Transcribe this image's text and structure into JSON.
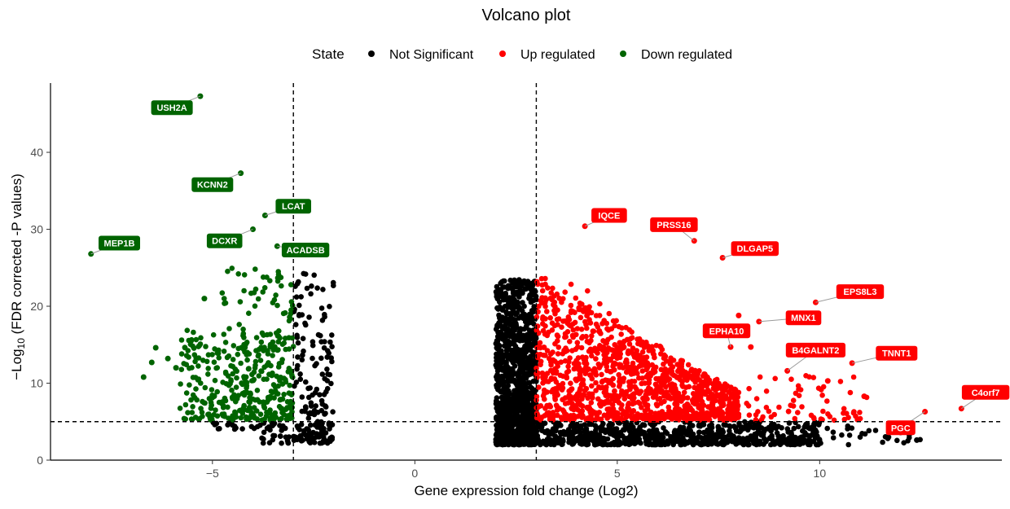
{
  "chart_data": {
    "type": "scatter",
    "title": "Volcano plot",
    "xlabel": "Gene expression fold change (Log2)",
    "ylabel_parts": [
      "−Log",
      "10",
      " (FDR corrected -P values)"
    ],
    "xlim": [
      -9,
      14.5
    ],
    "ylim": [
      0,
      49
    ],
    "x_ticks": [
      -5,
      0,
      5,
      10
    ],
    "y_ticks": [
      0,
      10,
      20,
      30,
      40
    ],
    "thresholds": {
      "fold_change_low": -3,
      "fold_change_high": 3,
      "neg_log10_p": 5
    },
    "legend": {
      "title": "State",
      "position": "top",
      "entries": [
        {
          "label": "Not Significant",
          "color": "#000000"
        },
        {
          "label": "Up regulated",
          "color": "#ff0000"
        },
        {
          "label": "Down regulated",
          "color": "#006400"
        }
      ]
    },
    "series": [
      {
        "name": "Not Significant",
        "color": "#000000",
        "clusters": [
          {
            "x": [
              2.0,
              3.0
            ],
            "y": [
              2.0,
              23.5
            ],
            "n": 1100,
            "taper": false
          },
          {
            "x": [
              3.0,
              10.0
            ],
            "y": [
              2.0,
              5.0
            ],
            "n": 700,
            "taper": false
          },
          {
            "x": [
              10.0,
              12.5
            ],
            "y": [
              2.0,
              4.8
            ],
            "n": 25,
            "taper": false
          },
          {
            "x": [
              -3.8,
              -2.0
            ],
            "y": [
              2.2,
              5.0
            ],
            "n": 70,
            "taper": false
          },
          {
            "x": [
              -3.0,
              -2.0
            ],
            "y": [
              2.5,
              24.5
            ],
            "n": 140,
            "taper": false
          },
          {
            "x": [
              -5.0,
              -3.8
            ],
            "y": [
              4.0,
              5.0
            ],
            "n": 20,
            "taper": false
          }
        ],
        "points": [
          {
            "x": 12.4,
            "y": 2.6
          },
          {
            "x": 11.7,
            "y": 3.0
          },
          {
            "x": 12.0,
            "y": 3.6
          }
        ]
      },
      {
        "name": "Up regulated",
        "color": "#ff0000",
        "clusters": [
          {
            "x": [
              3.0,
              8.0
            ],
            "y": [
              5.2,
              24.0
            ],
            "n": 1100,
            "taper": true
          },
          {
            "x": [
              3.0,
              6.5
            ],
            "y": [
              8.0,
              28.0
            ],
            "n": 120,
            "taper": true
          },
          {
            "x": [
              7.5,
              11.2
            ],
            "y": [
              5.2,
              11.0
            ],
            "n": 70,
            "taper": false
          }
        ],
        "points": [
          {
            "x": 4.2,
            "y": 30.4
          },
          {
            "x": 6.9,
            "y": 28.5
          },
          {
            "x": 7.6,
            "y": 26.3
          },
          {
            "x": 9.9,
            "y": 20.5
          },
          {
            "x": 8.0,
            "y": 18.8
          },
          {
            "x": 8.5,
            "y": 18.0
          },
          {
            "x": 7.8,
            "y": 14.7
          },
          {
            "x": 9.2,
            "y": 11.6
          },
          {
            "x": 10.8,
            "y": 12.6
          },
          {
            "x": 13.5,
            "y": 6.7
          },
          {
            "x": 12.6,
            "y": 6.3
          },
          {
            "x": 8.3,
            "y": 14.7
          },
          {
            "x": 10.2,
            "y": 10.3
          },
          {
            "x": 11.1,
            "y": 8.3
          }
        ]
      },
      {
        "name": "Down regulated",
        "color": "#006400",
        "clusters": [
          {
            "x": [
              -5.8,
              -3.0
            ],
            "y": [
              5.2,
              17.0
            ],
            "n": 330,
            "taper": false
          },
          {
            "x": [
              -4.8,
              -3.0
            ],
            "y": [
              10.0,
              25.0
            ],
            "n": 70,
            "taper": false
          },
          {
            "x": [
              -3.6,
              -3.0
            ],
            "y": [
              18.0,
              26.0
            ],
            "n": 12,
            "taper": false
          }
        ],
        "points": [
          {
            "x": -5.3,
            "y": 47.3
          },
          {
            "x": -4.3,
            "y": 37.3
          },
          {
            "x": -3.7,
            "y": 31.8
          },
          {
            "x": -8.0,
            "y": 26.8
          },
          {
            "x": -4.0,
            "y": 30.0
          },
          {
            "x": -3.4,
            "y": 27.8
          },
          {
            "x": -6.7,
            "y": 10.8
          },
          {
            "x": -6.4,
            "y": 14.6
          },
          {
            "x": -6.5,
            "y": 12.7
          },
          {
            "x": -6.1,
            "y": 13.2
          },
          {
            "x": -5.2,
            "y": 21.0
          },
          {
            "x": -5.9,
            "y": 12.0
          }
        ]
      }
    ],
    "annotations": [
      {
        "label": "USH2A",
        "x": -6.0,
        "y": 45.8,
        "point": [
          -5.3,
          47.3
        ],
        "type": "Down regulated",
        "color": "#006400"
      },
      {
        "label": "KCNN2",
        "x": -5.0,
        "y": 35.8,
        "point": [
          -4.3,
          37.3
        ],
        "type": "Down regulated",
        "color": "#006400"
      },
      {
        "label": "LCAT",
        "x": -3.0,
        "y": 33.0,
        "point": [
          -3.7,
          31.8
        ],
        "type": "Down regulated",
        "color": "#006400"
      },
      {
        "label": "MEP1B",
        "x": -7.3,
        "y": 28.2,
        "point": [
          -8.0,
          26.8
        ],
        "type": "Down regulated",
        "color": "#006400"
      },
      {
        "label": "DCXR",
        "x": -4.7,
        "y": 28.5,
        "point": [
          -4.0,
          30.0
        ],
        "type": "Down regulated",
        "color": "#006400"
      },
      {
        "label": "ACADSB",
        "x": -2.7,
        "y": 27.3,
        "point": [
          -3.4,
          27.8
        ],
        "type": "Down regulated",
        "color": "#006400"
      },
      {
        "label": "IQCE",
        "x": 4.8,
        "y": 31.8,
        "point": [
          4.2,
          30.4
        ],
        "type": "Up regulated",
        "color": "#ff0000"
      },
      {
        "label": "PRSS16",
        "x": 6.4,
        "y": 30.6,
        "point": [
          6.9,
          28.5
        ],
        "type": "Up regulated",
        "color": "#ff0000"
      },
      {
        "label": "DLGAP5",
        "x": 8.4,
        "y": 27.5,
        "point": [
          7.6,
          26.3
        ],
        "type": "Up regulated",
        "color": "#ff0000"
      },
      {
        "label": "EPS8L3",
        "x": 11.0,
        "y": 21.9,
        "point": [
          9.9,
          20.5
        ],
        "type": "Up regulated",
        "color": "#ff0000"
      },
      {
        "label": "MNX1",
        "x": 9.6,
        "y": 18.5,
        "point": [
          8.5,
          18.0
        ],
        "type": "Up regulated",
        "color": "#ff0000"
      },
      {
        "label": "EPHA10",
        "x": 7.7,
        "y": 16.8,
        "point": [
          7.8,
          14.7
        ],
        "type": "Up regulated",
        "color": "#ff0000"
      },
      {
        "label": "B4GALNT2",
        "x": 9.9,
        "y": 14.3,
        "point": [
          9.2,
          11.6
        ],
        "type": "Up regulated",
        "color": "#ff0000"
      },
      {
        "label": "TNNT1",
        "x": 11.9,
        "y": 13.9,
        "point": [
          10.8,
          12.6
        ],
        "type": "Up regulated",
        "color": "#ff0000"
      },
      {
        "label": "C4orf7",
        "x": 14.1,
        "y": 8.8,
        "point": [
          13.5,
          6.7
        ],
        "type": "Up regulated",
        "color": "#ff0000"
      },
      {
        "label": "PGC",
        "x": 12.0,
        "y": 4.2,
        "point": [
          12.6,
          6.3
        ],
        "type": "Up regulated",
        "color": "#ff0000"
      }
    ]
  }
}
